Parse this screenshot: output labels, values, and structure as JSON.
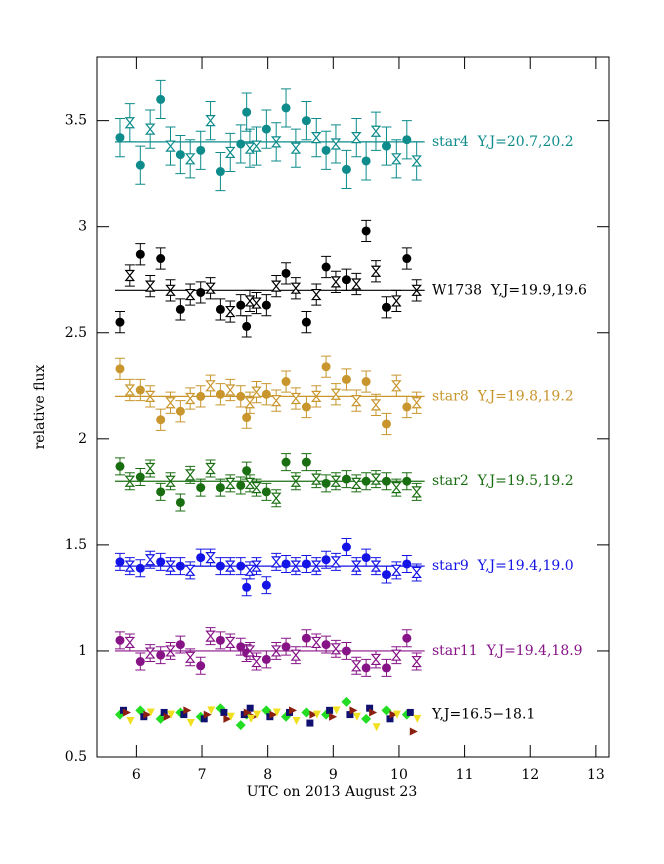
{
  "chart_data": {
    "type": "scatter",
    "x_label": "UTC on 2013 August 23",
    "y_label": "relative flux",
    "xlim": [
      5.4,
      13.2
    ],
    "xticks": [
      6,
      7,
      8,
      9,
      10,
      11,
      12,
      13
    ],
    "ylim": [
      0.5,
      3.8
    ],
    "yticks": [
      0.5,
      1,
      1.5,
      2,
      2.5,
      3,
      3.5
    ],
    "x_filled": [
      5.75,
      6.06,
      6.37,
      6.67,
      6.98,
      7.28,
      7.59,
      7.68,
      7.98,
      8.28,
      8.59,
      8.89,
      9.2,
      9.5,
      9.81,
      10.12
    ],
    "x_open": [
      5.9,
      6.21,
      6.52,
      6.82,
      7.13,
      7.43,
      7.73,
      7.83,
      8.13,
      8.43,
      8.74,
      9.04,
      9.35,
      9.65,
      9.96,
      10.27
    ],
    "groups": [
      {
        "name": "star4  Y,J=20.7,20.2",
        "color": "#0e8b8b",
        "level": 3.4,
        "error": 0.09,
        "filled": [
          3.42,
          3.29,
          3.6,
          3.34,
          3.36,
          3.26,
          3.39,
          3.54,
          3.46,
          3.56,
          3.5,
          3.36,
          3.27,
          3.31,
          3.38,
          3.41
        ],
        "open": [
          3.49,
          3.46,
          3.38,
          3.32,
          3.5,
          3.35,
          3.37,
          3.38,
          3.4,
          3.37,
          3.42,
          3.39,
          3.42,
          3.45,
          3.32,
          3.31
        ]
      },
      {
        "name": "W1738  Y,J=19.9,19.6",
        "color": "#000000",
        "level": 2.7,
        "error": 0.05,
        "filled": [
          2.55,
          2.87,
          2.85,
          2.61,
          2.69,
          2.61,
          2.63,
          2.53,
          2.63,
          2.78,
          2.55,
          2.81,
          2.75,
          2.98,
          2.62,
          2.85
        ],
        "open": [
          2.77,
          2.72,
          2.7,
          2.68,
          2.71,
          2.6,
          2.65,
          2.64,
          2.72,
          2.71,
          2.68,
          2.74,
          2.73,
          2.79,
          2.65,
          2.7
        ]
      },
      {
        "name": "star8  Y,J=19.8,19.2",
        "color": "#c8962d",
        "level": 2.2,
        "error": 0.05,
        "filled": [
          2.33,
          2.23,
          2.09,
          2.13,
          2.2,
          2.21,
          2.2,
          2.1,
          2.21,
          2.27,
          2.15,
          2.34,
          2.28,
          2.27,
          2.07,
          2.15
        ],
        "open": [
          2.23,
          2.2,
          2.17,
          2.19,
          2.25,
          2.23,
          2.17,
          2.22,
          2.18,
          2.19,
          2.2,
          2.21,
          2.18,
          2.16,
          2.25,
          2.17
        ]
      },
      {
        "name": "star2  Y,J=19.5,19.2",
        "color": "#1a6e12",
        "level": 1.8,
        "error": 0.04,
        "filled": [
          1.87,
          1.82,
          1.75,
          1.7,
          1.77,
          1.77,
          1.78,
          1.85,
          1.75,
          1.89,
          1.89,
          1.79,
          1.81,
          1.8,
          1.8,
          1.8
        ],
        "open": [
          1.8,
          1.86,
          1.8,
          1.83,
          1.86,
          1.79,
          1.79,
          1.77,
          1.72,
          1.8,
          1.81,
          1.8,
          1.79,
          1.81,
          1.77,
          1.75
        ]
      },
      {
        "name": "star9  Y,J=19.4,19.0",
        "color": "#1414e6",
        "level": 1.4,
        "error": 0.04,
        "filled": [
          1.42,
          1.39,
          1.42,
          1.4,
          1.44,
          1.4,
          1.4,
          1.3,
          1.31,
          1.41,
          1.41,
          1.43,
          1.49,
          1.44,
          1.36,
          1.41
        ],
        "open": [
          1.4,
          1.43,
          1.4,
          1.38,
          1.44,
          1.4,
          1.38,
          1.4,
          1.42,
          1.4,
          1.4,
          1.42,
          1.4,
          1.4,
          1.38,
          1.37
        ]
      },
      {
        "name": "star11  Y,J=19.4,18.9",
        "color": "#871487",
        "level": 1.0,
        "error": 0.04,
        "filled": [
          1.05,
          0.95,
          0.98,
          1.03,
          0.93,
          1.05,
          1.02,
          0.99,
          0.96,
          1.02,
          1.06,
          1.03,
          1.0,
          0.92,
          0.92,
          1.06
        ],
        "open": [
          1.04,
          0.99,
          1.0,
          0.97,
          1.07,
          1.04,
          1.0,
          0.95,
          1.0,
          0.98,
          1.04,
          1.01,
          0.93,
          0.96,
          0.98,
          0.95
        ]
      }
    ],
    "bright_label": "Y,J=16.5−18.1",
    "bright": [
      {
        "color": "#22dd22",
        "marker": "diamond",
        "values": [
          0.7,
          0.72,
          0.68,
          0.71,
          0.69,
          0.73,
          0.65,
          0.7,
          0.72,
          0.69,
          0.71,
          0.7,
          0.76,
          0.68,
          0.72,
          0.7
        ]
      },
      {
        "color": "#101070",
        "marker": "square",
        "values": [
          0.72,
          0.69,
          0.71,
          0.7,
          0.68,
          0.71,
          0.7,
          0.73,
          0.69,
          0.71,
          0.66,
          0.72,
          0.7,
          0.73,
          0.68,
          0.71
        ]
      },
      {
        "color": "#8b2010",
        "marker": "triangle",
        "values": [
          0.71,
          0.7,
          0.69,
          0.72,
          0.7,
          0.68,
          0.71,
          0.69,
          0.7,
          0.72,
          0.7,
          0.69,
          0.72,
          0.71,
          0.7,
          0.62
        ]
      },
      {
        "color": "#f0e020",
        "marker": "triangle",
        "values": [
          0.67,
          0.71,
          0.7,
          0.66,
          0.72,
          0.69,
          0.68,
          0.7,
          0.71,
          0.67,
          0.7,
          0.72,
          0.69,
          0.64,
          0.7,
          0.68
        ]
      }
    ]
  }
}
